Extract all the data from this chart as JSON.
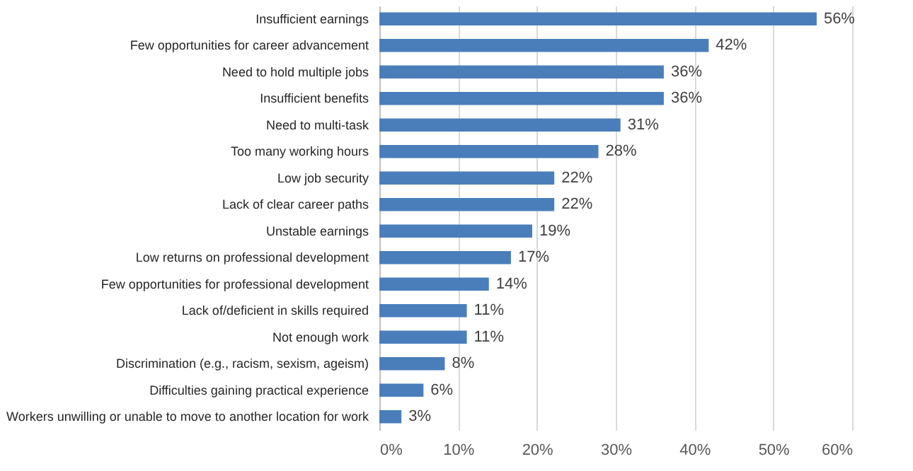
{
  "chart_data": {
    "type": "bar",
    "orientation": "horizontal",
    "categories": [
      "Insufficient earnings",
      "Few opportunities for career advancement",
      "Need to hold multiple jobs",
      "Insufficient benefits",
      "Need to multi-task",
      "Too many working hours",
      "Low job security",
      "Lack of clear career paths",
      "Unstable earnings",
      "Low returns on professional development",
      "Few opportunities for professional development",
      "Lack of/deficient in skills required",
      "Not enough work",
      "Discrimination (e.g., racism, sexism, ageism)",
      "Difficulties gaining practical experience",
      "Workers unwilling or unable to move to another location for work"
    ],
    "values": [
      55.5,
      41.8,
      36.1,
      36.1,
      30.6,
      27.8,
      22.2,
      22.2,
      19.4,
      16.7,
      13.9,
      11.1,
      11.1,
      8.3,
      5.6,
      2.8
    ],
    "value_labels": [
      "56%",
      "42%",
      "36%",
      "36%",
      "31%",
      "28%",
      "22%",
      "22%",
      "19%",
      "17%",
      "14%",
      "11%",
      "11%",
      "8%",
      "6%",
      "3%"
    ],
    "color": "#4a7ebb",
    "xlim": [
      0,
      60
    ],
    "xticks": [
      {
        "value": 0,
        "label": "0%"
      },
      {
        "value": 10,
        "label": "10%"
      },
      {
        "value": 20,
        "label": "20%"
      },
      {
        "value": 30,
        "label": "30%"
      },
      {
        "value": 40,
        "label": "40%"
      },
      {
        "value": 50,
        "label": "50%"
      },
      {
        "value": 60,
        "label": "60%"
      }
    ],
    "grid": "x"
  }
}
